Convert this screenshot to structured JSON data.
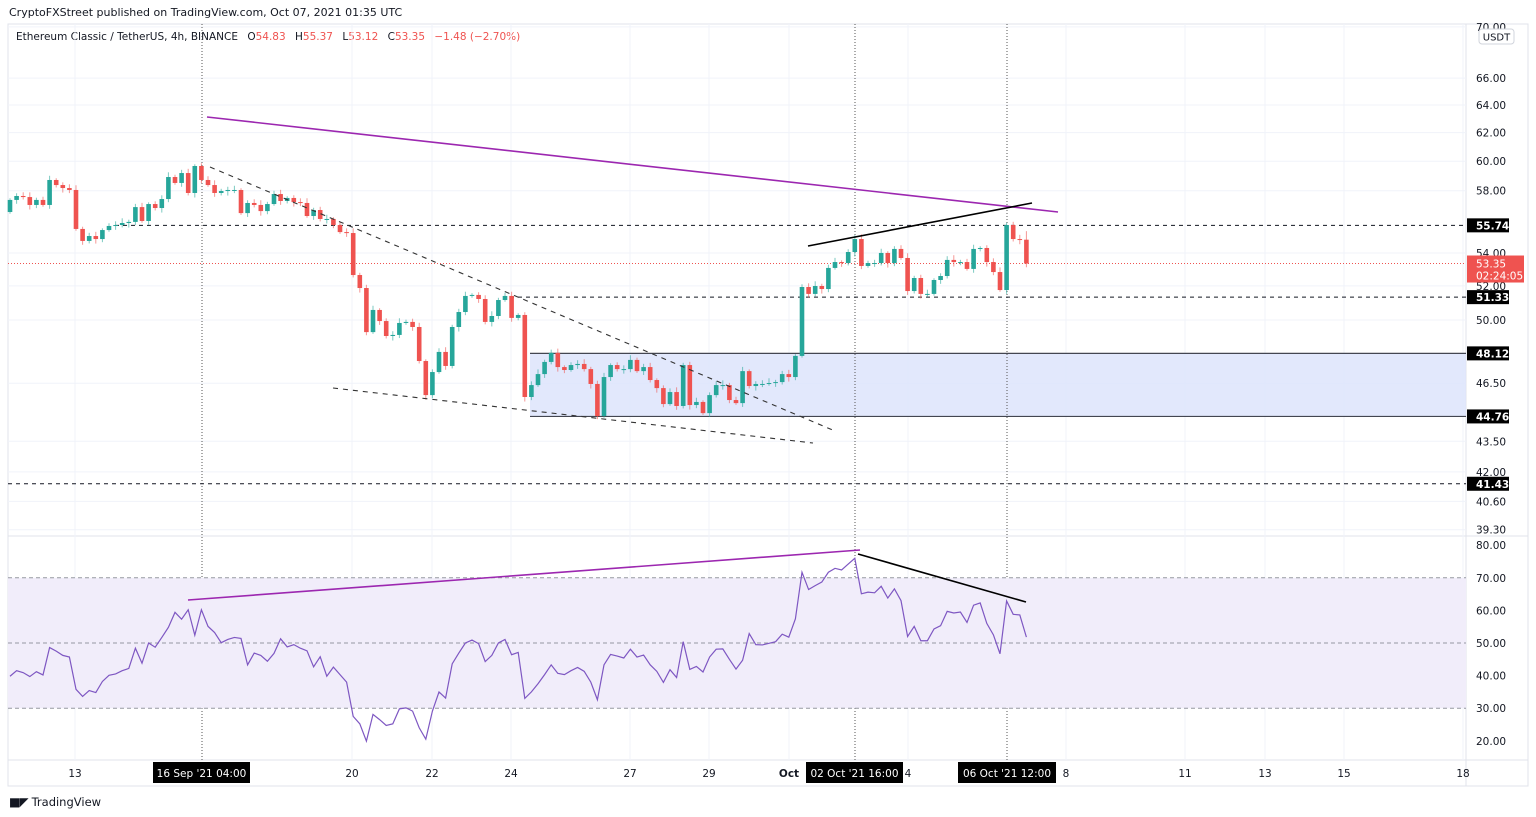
{
  "publisher": "CryptoFXStreet published on TradingView.com, Oct 07, 2021 01:35 UTC",
  "legend": {
    "symbol": "Ethereum Classic / TetherUS, 4h, BINANCE",
    "o_label": "O",
    "o": "54.83",
    "h_label": "H",
    "h": "55.37",
    "l_label": "L",
    "l": "53.12",
    "c_label": "C",
    "c": "53.35",
    "change": "−1.48 (−2.70%)"
  },
  "currency_badge": "USDT",
  "logo": {
    "mark": "17",
    "text": "TradingView"
  },
  "colors": {
    "up": "#26a69a",
    "down": "#ef5350",
    "rsi": "#7e57c2",
    "trend_purple": "#9c27b0",
    "zone": "#dde4fb"
  },
  "chart_data": {
    "type": "candlestick",
    "interval": "4h",
    "scale": "log",
    "ylim": [
      39.0,
      70.0
    ],
    "y_ticks": [
      "70.00",
      "66.00",
      "64.00",
      "62.00",
      "60.00",
      "58.00",
      "54.00",
      "52.00",
      "50.00",
      "46.50",
      "43.50",
      "42.00",
      "40.60",
      "39.30"
    ],
    "x_ticks": [
      {
        "label": "13",
        "bold": false
      },
      {
        "label": "20",
        "bold": false
      },
      {
        "label": "22",
        "bold": false
      },
      {
        "label": "24",
        "bold": false
      },
      {
        "label": "27",
        "bold": false
      },
      {
        "label": "29",
        "bold": false
      },
      {
        "label": "Oct",
        "bold": true
      },
      {
        "label": "4",
        "bold": false
      },
      {
        "label": "8",
        "bold": false
      },
      {
        "label": "11",
        "bold": false
      },
      {
        "label": "13",
        "bold": false
      },
      {
        "label": "15",
        "bold": false
      },
      {
        "label": "18",
        "bold": false
      }
    ],
    "crosshair_labels": [
      "16 Sep '21   04:00",
      "02 Oct '21   16:00",
      "06 Oct '21   12:00"
    ],
    "first_open": 56.6,
    "closes": [
      57.39,
      57.65,
      57.58,
      57.06,
      57.39,
      57.06,
      58.72,
      58.38,
      58.18,
      58.05,
      55.51,
      54.75,
      55.06,
      54.87,
      55.44,
      55.7,
      55.76,
      55.89,
      55.96,
      56.92,
      56.02,
      57.12,
      56.86,
      57.45,
      58.92,
      58.52,
      59.19,
      57.85,
      59.67,
      58.72,
      58.38,
      57.85,
      57.98,
      58.05,
      58.05,
      56.53,
      57.19,
      57.06,
      56.66,
      57.12,
      57.78,
      57.32,
      57.52,
      57.25,
      57.19,
      56.34,
      56.73,
      56.15,
      56.15,
      55.76,
      55.31,
      55.25,
      52.65,
      51.87,
      49.31,
      50.58,
      49.94,
      49.09,
      49.15,
      49.83,
      49.89,
      49.6,
      47.7,
      45.87,
      47.1,
      48.2,
      47.43,
      49.6,
      50.46,
      51.4,
      51.46,
      51.22,
      49.89,
      50.23,
      51.16,
      51.4,
      50.12,
      50.29,
      45.77,
      46.4,
      46.99,
      47.65,
      48.15,
      47.37,
      47.21,
      47.48,
      47.54,
      47.26,
      46.46,
      44.78,
      46.83,
      47.48,
      47.26,
      47.26,
      47.76,
      47.15,
      47.37,
      46.67,
      46.24,
      45.4,
      46.03,
      45.3,
      47.48,
      45.35,
      45.51,
      44.93,
      45.87,
      46.4,
      46.4,
      45.61,
      45.45,
      47.15,
      46.35,
      46.46,
      46.46,
      46.51,
      46.56,
      46.99,
      46.83,
      47.98,
      51.93,
      51.52,
      51.99,
      51.81,
      53.08,
      53.44,
      53.38,
      54.06,
      54.87,
      53.2,
      53.38,
      53.38,
      54.0,
      53.38,
      54.25,
      53.69,
      51.69,
      52.47,
      51.52,
      51.52,
      52.35,
      52.59,
      53.57,
      53.44,
      53.44,
      53.02,
      54.25,
      54.31,
      53.44,
      52.83,
      51.75,
      55.76,
      54.87,
      54.83,
      53.35
    ],
    "last_candle": {
      "open": 54.83,
      "high": 55.37,
      "low": 53.12,
      "close": 53.35
    },
    "levels": [
      {
        "value": "55.74",
        "style": "dashed"
      },
      {
        "value": "51.33",
        "style": "dashed"
      },
      {
        "value": "48.12",
        "style": "solid"
      },
      {
        "value": "44.76",
        "style": "solid"
      },
      {
        "value": "41.43",
        "style": "dashed"
      }
    ],
    "last_price": {
      "value": "53.35",
      "countdown": "02:24:05"
    },
    "rsi": {
      "ylim": [
        15,
        82
      ],
      "y_ticks": [
        "80.00",
        "70.00",
        "60.00",
        "50.00",
        "40.00",
        "30.00",
        "20.00"
      ],
      "band": [
        30,
        70
      ],
      "values": [
        39.8,
        41.5,
        40.9,
        39.7,
        41.2,
        40.2,
        48.6,
        47.5,
        46.2,
        45.7,
        35.8,
        33.6,
        35.4,
        34.8,
        38.2,
        40.1,
        40.5,
        41.5,
        42.2,
        48.4,
        43.8,
        50.0,
        48.7,
        51.7,
        54.8,
        59.4,
        57.3,
        60.2,
        52.4,
        60.2,
        55.1,
        53.2,
        50.1,
        51.1,
        51.7,
        51.4,
        43.3,
        46.9,
        46.2,
        44.4,
        46.8,
        51.3,
        48.8,
        49.5,
        48.4,
        47.6,
        42.7,
        45.8,
        39.8,
        42.6,
        40.3,
        38.0,
        27.5,
        25.2,
        19.9,
        28.1,
        26.5,
        24.7,
        25.2,
        29.8,
        30.1,
        29.1,
        24.0,
        20.5,
        29.1,
        35.0,
        33.1,
        43.6,
        46.9,
        50.0,
        50.9,
        49.8,
        44.3,
        46.2,
        50.0,
        51.1,
        46.4,
        47.1,
        33.0,
        35.0,
        37.5,
        40.3,
        43.3,
        40.7,
        40.3,
        41.5,
        42.5,
        41.3,
        38.0,
        32.6,
        43.3,
        46.5,
        46.0,
        45.4,
        48.1,
        45.7,
        46.3,
        43.3,
        41.3,
        37.9,
        41.8,
        39.4,
        50.4,
        41.9,
        42.8,
        41.1,
        45.7,
        48.1,
        48.2,
        45.0,
        42.0,
        44.7,
        52.9,
        49.5,
        49.4,
        49.9,
        50.4,
        52.7,
        51.8,
        57.4,
        71.7,
        66.4,
        67.6,
        68.7,
        71.7,
        72.9,
        72.4,
        74.2,
        76.0,
        65.1,
        65.6,
        65.4,
        67.4,
        63.8,
        66.6,
        63.0,
        52.0,
        55.1,
        50.7,
        50.7,
        54.3,
        55.3,
        59.7,
        59.2,
        59.5,
        56.3,
        61.6,
        62.3,
        56.0,
        52.5,
        46.7,
        62.9,
        58.8,
        58.6,
        51.8
      ]
    }
  }
}
